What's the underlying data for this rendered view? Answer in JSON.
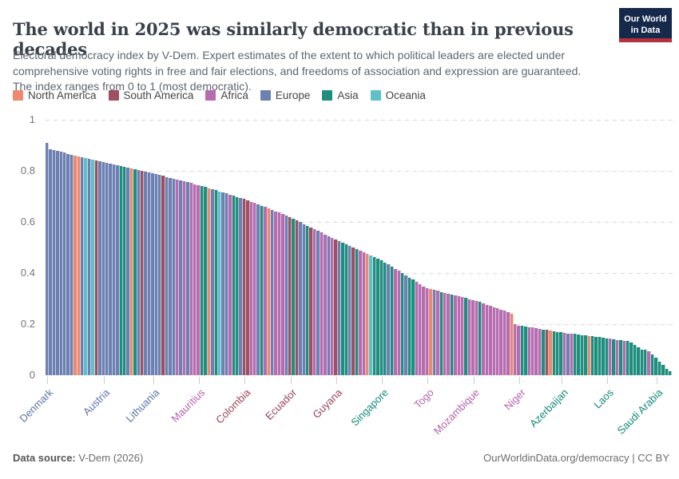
{
  "header": {
    "title": "The world in 2025 was similarly democratic than in previous decades",
    "subtitle": "Electoral democracy index by V-Dem. Expert estimates of the extent to which political leaders are elected under comprehensive voting rights in free and fair elections, and freedoms of association and expression are guaranteed. The index ranges from 0 to 1 (most democratic).",
    "logo": {
      "line1": "Our World",
      "line2": "in Data",
      "bg_color": "#15294b",
      "accent_color": "#b5323c"
    }
  },
  "footer": {
    "source_label": "Data source:",
    "source_value": " V-Dem (2026)",
    "right_text": "OurWorldinData.org/democracy | CC BY"
  },
  "chart_data": {
    "type": "bar",
    "title": "The world in 2025 was similarly democratic than in previous decades",
    "xlabel": "",
    "ylabel": "Electoral democracy index",
    "ylim": [
      0,
      1
    ],
    "grid": "dashed-horizontal",
    "legend_position": "top",
    "continent_names": {
      "NA": "North America",
      "SA": "South America",
      "AF": "Africa",
      "EU": "Europe",
      "AS": "Asia",
      "OC": "Oceania"
    },
    "continent_colors": {
      "NA": "#eb8a6f",
      "SA": "#9d5062",
      "AF": "#b66db0",
      "EU": "#6d80b2",
      "AS": "#1f8e7e",
      "OC": "#5fc0c9"
    },
    "axis_label_colors": {
      "NA": "#c15845",
      "SA": "#9c4355",
      "AF": "#b264aa",
      "EU": "#5b74a8",
      "AS": "#12897c",
      "OC": "#3ba7b4"
    },
    "legend_order": [
      "NA",
      "SA",
      "AF",
      "EU",
      "AS",
      "OC"
    ],
    "y_ticks": [
      {
        "v": 1,
        "label": "1"
      },
      {
        "v": 0.8,
        "label": "0.8"
      },
      {
        "v": 0.6,
        "label": "0.6"
      },
      {
        "v": 0.4,
        "label": "0.4"
      },
      {
        "v": 0.2,
        "label": "0.2"
      },
      {
        "v": 0,
        "label": "0"
      }
    ],
    "x_axis_labels": [
      {
        "label": "Denmark",
        "bar": 1,
        "c": "EU"
      },
      {
        "label": "Austria",
        "bar": 17,
        "c": "EU"
      },
      {
        "label": "Lithuania",
        "bar": 31,
        "c": "EU"
      },
      {
        "label": "Mauritius",
        "bar": 44,
        "c": "AF"
      },
      {
        "label": "Colombia",
        "bar": 57,
        "c": "SA"
      },
      {
        "label": "Ecuador",
        "bar": 70,
        "c": "SA"
      },
      {
        "label": "Guyana",
        "bar": 83,
        "c": "SA"
      },
      {
        "label": "Singapore",
        "bar": 96,
        "c": "AS"
      },
      {
        "label": "Togo",
        "bar": 109,
        "c": "AF"
      },
      {
        "label": "Mozambique",
        "bar": 122,
        "c": "AF"
      },
      {
        "label": "Niger",
        "bar": 135,
        "c": "AF"
      },
      {
        "label": "Azerbaijan",
        "bar": 147,
        "c": "AS"
      },
      {
        "label": "Laos",
        "bar": 160,
        "c": "AS"
      },
      {
        "label": "Saudi Arabia",
        "bar": 174,
        "c": "AS"
      }
    ],
    "bars": [
      [
        0.91,
        "EU"
      ],
      [
        0.885,
        "EU"
      ],
      [
        0.881,
        "EU"
      ],
      [
        0.878,
        "EU"
      ],
      [
        0.874,
        "EU"
      ],
      [
        0.871,
        "EU"
      ],
      [
        0.867,
        "EU"
      ],
      [
        0.864,
        "EU"
      ],
      [
        0.86,
        "NA"
      ],
      [
        0.857,
        "NA"
      ],
      [
        0.854,
        "EU"
      ],
      [
        0.851,
        "OC"
      ],
      [
        0.848,
        "EU"
      ],
      [
        0.845,
        "OC"
      ],
      [
        0.841,
        "SA"
      ],
      [
        0.838,
        "EU"
      ],
      [
        0.835,
        "EU"
      ],
      [
        0.832,
        "EU"
      ],
      [
        0.829,
        "EU"
      ],
      [
        0.825,
        "EU"
      ],
      [
        0.822,
        "EU"
      ],
      [
        0.819,
        "AS"
      ],
      [
        0.816,
        "AS"
      ],
      [
        0.813,
        "EU"
      ],
      [
        0.809,
        "NA"
      ],
      [
        0.806,
        "AS"
      ],
      [
        0.803,
        "EU"
      ],
      [
        0.8,
        "SA"
      ],
      [
        0.797,
        "EU"
      ],
      [
        0.793,
        "EU"
      ],
      [
        0.79,
        "EU"
      ],
      [
        0.787,
        "EU"
      ],
      [
        0.783,
        "EU"
      ],
      [
        0.78,
        "SA"
      ],
      [
        0.776,
        "EU"
      ],
      [
        0.773,
        "EU"
      ],
      [
        0.769,
        "EU"
      ],
      [
        0.766,
        "AF"
      ],
      [
        0.762,
        "EU"
      ],
      [
        0.759,
        "AF"
      ],
      [
        0.755,
        "EU"
      ],
      [
        0.752,
        "AF"
      ],
      [
        0.748,
        "AF"
      ],
      [
        0.745,
        "AF"
      ],
      [
        0.741,
        "AS"
      ],
      [
        0.737,
        "AS"
      ],
      [
        0.732,
        "NA"
      ],
      [
        0.728,
        "EU"
      ],
      [
        0.724,
        "AS"
      ],
      [
        0.72,
        "OC"
      ],
      [
        0.715,
        "EU"
      ],
      [
        0.711,
        "EU"
      ],
      [
        0.707,
        "AF"
      ],
      [
        0.702,
        "AS"
      ],
      [
        0.698,
        "AS"
      ],
      [
        0.694,
        "EU"
      ],
      [
        0.69,
        "SA"
      ],
      [
        0.685,
        "SA"
      ],
      [
        0.679,
        "AF"
      ],
      [
        0.674,
        "AF"
      ],
      [
        0.668,
        "EU"
      ],
      [
        0.663,
        "AS"
      ],
      [
        0.658,
        "AF"
      ],
      [
        0.652,
        "NA"
      ],
      [
        0.647,
        "EU"
      ],
      [
        0.642,
        "AF"
      ],
      [
        0.636,
        "AF"
      ],
      [
        0.631,
        "AF"
      ],
      [
        0.625,
        "EU"
      ],
      [
        0.62,
        "SA"
      ],
      [
        0.613,
        "AS"
      ],
      [
        0.606,
        "SA"
      ],
      [
        0.599,
        "EU"
      ],
      [
        0.592,
        "EU"
      ],
      [
        0.585,
        "AS"
      ],
      [
        0.578,
        "SA"
      ],
      [
        0.572,
        "AF"
      ],
      [
        0.565,
        "EU"
      ],
      [
        0.558,
        "AF"
      ],
      [
        0.551,
        "AF"
      ],
      [
        0.544,
        "EU"
      ],
      [
        0.537,
        "AF"
      ],
      [
        0.53,
        "SA"
      ],
      [
        0.524,
        "EU"
      ],
      [
        0.518,
        "AS"
      ],
      [
        0.511,
        "AS"
      ],
      [
        0.505,
        "EU"
      ],
      [
        0.499,
        "SA"
      ],
      [
        0.493,
        "AS"
      ],
      [
        0.487,
        "AF"
      ],
      [
        0.481,
        "AF"
      ],
      [
        0.474,
        "NA"
      ],
      [
        0.468,
        "OC"
      ],
      [
        0.462,
        "AS"
      ],
      [
        0.456,
        "AS"
      ],
      [
        0.45,
        "AS"
      ],
      [
        0.442,
        "AS"
      ],
      [
        0.433,
        "EU"
      ],
      [
        0.425,
        "AS"
      ],
      [
        0.416,
        "AF"
      ],
      [
        0.408,
        "AF"
      ],
      [
        0.399,
        "AS"
      ],
      [
        0.391,
        "EU"
      ],
      [
        0.382,
        "AS"
      ],
      [
        0.374,
        "AS"
      ],
      [
        0.365,
        "AF"
      ],
      [
        0.357,
        "AF"
      ],
      [
        0.348,
        "AF"
      ],
      [
        0.34,
        "AF"
      ],
      [
        0.337,
        "NA"
      ],
      [
        0.333,
        "EU"
      ],
      [
        0.33,
        "AF"
      ],
      [
        0.326,
        "AS"
      ],
      [
        0.323,
        "AF"
      ],
      [
        0.319,
        "AF"
      ],
      [
        0.316,
        "AS"
      ],
      [
        0.312,
        "AF"
      ],
      [
        0.309,
        "AF"
      ],
      [
        0.305,
        "AF"
      ],
      [
        0.302,
        "AS"
      ],
      [
        0.298,
        "AF"
      ],
      [
        0.295,
        "AF"
      ],
      [
        0.29,
        "AF"
      ],
      [
        0.286,
        "AS"
      ],
      [
        0.281,
        "AF"
      ],
      [
        0.276,
        "AF"
      ],
      [
        0.271,
        "AF"
      ],
      [
        0.267,
        "AF"
      ],
      [
        0.262,
        "AF"
      ],
      [
        0.257,
        "AF"
      ],
      [
        0.253,
        "AF"
      ],
      [
        0.248,
        "AF"
      ],
      [
        0.24,
        "NA"
      ],
      [
        0.2,
        "AF"
      ],
      [
        0.195,
        "AF"
      ],
      [
        0.193,
        "AS"
      ],
      [
        0.19,
        "AS"
      ],
      [
        0.188,
        "AF"
      ],
      [
        0.186,
        "AF"
      ],
      [
        0.184,
        "AF"
      ],
      [
        0.181,
        "AF"
      ],
      [
        0.179,
        "AS"
      ],
      [
        0.177,
        "SA"
      ],
      [
        0.175,
        "NA"
      ],
      [
        0.172,
        "AS"
      ],
      [
        0.17,
        "AS"
      ],
      [
        0.168,
        "AS"
      ],
      [
        0.166,
        "AF"
      ],
      [
        0.164,
        "EU"
      ],
      [
        0.163,
        "AF"
      ],
      [
        0.161,
        "AS"
      ],
      [
        0.159,
        "AS"
      ],
      [
        0.157,
        "AS"
      ],
      [
        0.156,
        "AS"
      ],
      [
        0.154,
        "NA"
      ],
      [
        0.152,
        "AS"
      ],
      [
        0.15,
        "AS"
      ],
      [
        0.149,
        "AS"
      ],
      [
        0.147,
        "AS"
      ],
      [
        0.145,
        "AS"
      ],
      [
        0.143,
        "AF"
      ],
      [
        0.141,
        "AS"
      ],
      [
        0.139,
        "AF"
      ],
      [
        0.137,
        "AS"
      ],
      [
        0.135,
        "AF"
      ],
      [
        0.133,
        "AS"
      ],
      [
        0.128,
        "AS"
      ],
      [
        0.118,
        "AS"
      ],
      [
        0.108,
        "AS"
      ],
      [
        0.101,
        "AS"
      ],
      [
        0.099,
        "AS"
      ],
      [
        0.094,
        "AF"
      ],
      [
        0.08,
        "AS"
      ],
      [
        0.07,
        "AS"
      ],
      [
        0.052,
        "AS"
      ],
      [
        0.04,
        "AS"
      ],
      [
        0.026,
        "AS"
      ],
      [
        0.015,
        "AS"
      ]
    ]
  }
}
